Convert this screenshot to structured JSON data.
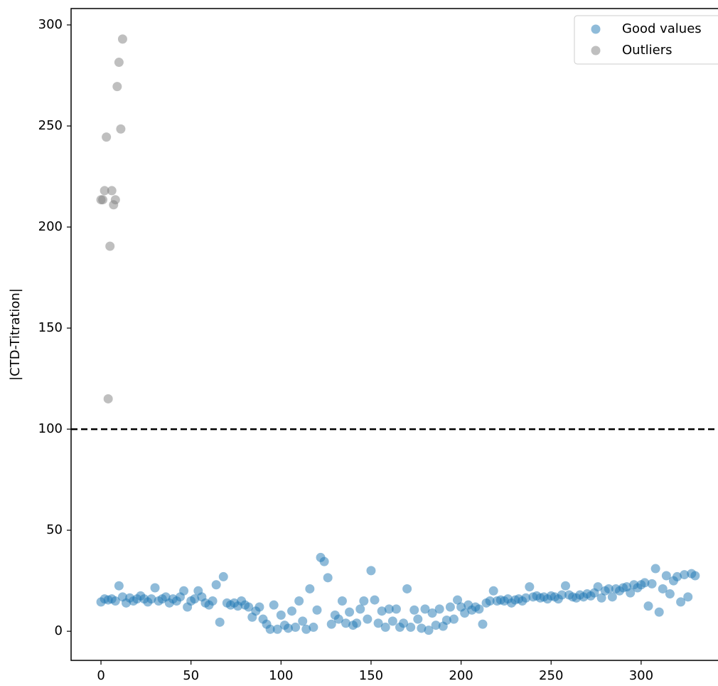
{
  "chart_data": {
    "type": "scatter",
    "ylabel": "|CTD-Titration|",
    "xlim": [
      -16.6,
      341.9
    ],
    "ylim": [
      -14.4,
      308.1
    ],
    "xticks": [
      0,
      50,
      100,
      150,
      200,
      250,
      300
    ],
    "yticks": [
      0,
      50,
      100,
      150,
      200,
      250,
      300
    ],
    "threshold": 100,
    "legend": "upper right",
    "series": [
      {
        "name": "Good values",
        "color": "#1f77b4",
        "x": [
          0,
          2,
          4,
          6,
          8,
          10,
          12,
          14,
          16,
          18,
          20,
          22,
          24,
          26,
          28,
          30,
          32,
          34,
          36,
          38,
          40,
          42,
          44,
          46,
          48,
          50,
          52,
          54,
          56,
          58,
          60,
          62,
          64,
          66,
          68,
          70,
          72,
          74,
          76,
          78,
          80,
          82,
          84,
          86,
          88,
          90,
          92,
          94,
          96,
          98,
          100,
          102,
          104,
          106,
          108,
          110,
          112,
          114,
          116,
          118,
          120,
          122,
          124,
          126,
          128,
          130,
          132,
          134,
          136,
          138,
          140,
          142,
          144,
          146,
          148,
          150,
          152,
          154,
          156,
          158,
          160,
          162,
          164,
          166,
          168,
          170,
          172,
          174,
          176,
          178,
          180,
          182,
          184,
          186,
          188,
          190,
          192,
          194,
          196,
          198,
          200,
          202,
          204,
          206,
          208,
          210,
          212,
          214,
          216,
          218,
          220,
          222,
          224,
          226,
          228,
          230,
          232,
          234,
          236,
          238,
          240,
          242,
          244,
          246,
          248,
          250,
          252,
          254,
          256,
          258,
          260,
          262,
          264,
          266,
          268,
          270,
          272,
          274,
          276,
          278,
          280,
          282,
          284,
          286,
          288,
          290,
          292,
          294,
          296,
          298,
          300,
          302,
          304,
          306,
          308,
          310,
          312,
          314,
          316,
          318,
          320,
          322,
          324,
          326,
          328,
          330
        ],
        "values": [
          14.5,
          16,
          15.5,
          16,
          15,
          22.5,
          17,
          14,
          16.5,
          15,
          16,
          17.5,
          16,
          14.5,
          16,
          21.5,
          15,
          16,
          17,
          14,
          16,
          15,
          17,
          20,
          12,
          15,
          16,
          20,
          17,
          14,
          13,
          15,
          23,
          4.5,
          27,
          14,
          13,
          14,
          12.5,
          15,
          13,
          12,
          7,
          10,
          12,
          6,
          3.5,
          1,
          13,
          1,
          8,
          3,
          1.5,
          10,
          2,
          15,
          5,
          1,
          21,
          2,
          10.5,
          36.5,
          34.5,
          26.5,
          3.5,
          8,
          6,
          15,
          4,
          9.5,
          3,
          4,
          11,
          15,
          6,
          30,
          15.5,
          4,
          10,
          2,
          11,
          5,
          11,
          2,
          4,
          21,
          2,
          10.5,
          6,
          1.5,
          11,
          0.5,
          9,
          3,
          11,
          2.5,
          5.5,
          12,
          6,
          15.5,
          12,
          9,
          13,
          10.5,
          12,
          11,
          3.5,
          14,
          15,
          20,
          15,
          15.5,
          15,
          16,
          14,
          15.5,
          16,
          15,
          16.5,
          22,
          17,
          17.5,
          16.5,
          17,
          16,
          17.5,
          17,
          16,
          18,
          22.5,
          18,
          17,
          16.5,
          18,
          17,
          18.5,
          17.5,
          19,
          22,
          16.5,
          20,
          21,
          17,
          21,
          20,
          21.5,
          22,
          19,
          23,
          21.5,
          23,
          24,
          12.5,
          23.5,
          31,
          9.5,
          21,
          27.5,
          18.5,
          25,
          27,
          14.5,
          28,
          17,
          28.5,
          27.5
        ]
      },
      {
        "name": "Outliers",
        "color": "#808080",
        "x": [
          0,
          1,
          2,
          3,
          4,
          5,
          6,
          7,
          8,
          9,
          10,
          11,
          12
        ],
        "values": [
          213.5,
          213.5,
          218,
          244.5,
          115,
          190.5,
          218,
          211,
          213.5,
          269.5,
          281.5,
          248.5,
          293
        ]
      }
    ]
  }
}
